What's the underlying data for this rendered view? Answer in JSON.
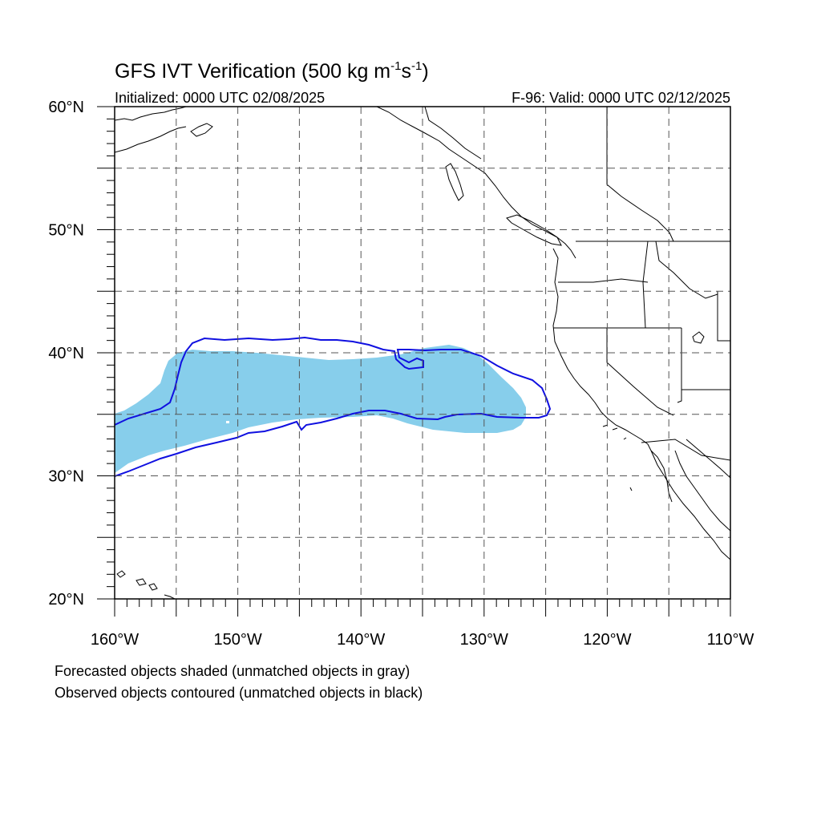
{
  "title": {
    "prefix": "GFS IVT Verification (500 kg m",
    "exp1": "-1",
    "mid": "s",
    "exp2": "-1",
    "suffix": ")"
  },
  "subtitle_left": "Initialized: 0000 UTC 02/08/2025",
  "subtitle_right": "F-96: Valid: 0000 UTC 02/12/2025",
  "map": {
    "lon_range": [
      -160,
      -110
    ],
    "lat_range": [
      20,
      60
    ],
    "grid": "dashed, every 5 degrees",
    "lat_labels": [
      {
        "lat": 60,
        "text": "60°N"
      },
      {
        "lat": 50,
        "text": "50°N"
      },
      {
        "lat": 40,
        "text": "40°N"
      },
      {
        "lat": 30,
        "text": "30°N"
      },
      {
        "lat": 20,
        "text": "20°N"
      }
    ],
    "lon_labels": [
      {
        "lon": -160,
        "text": "160°W"
      },
      {
        "lon": -150,
        "text": "150°W"
      },
      {
        "lon": -140,
        "text": "140°W"
      },
      {
        "lon": -130,
        "text": "130°W"
      },
      {
        "lon": -120,
        "text": "120°W"
      },
      {
        "lon": -110,
        "text": "110°W"
      }
    ],
    "forecast_color": "#87ceeb",
    "observed_color": "#1010e0",
    "coast_color": "#000000"
  },
  "captions": [
    "Forecasted objects shaded (unmatched objects in gray)",
    "Observed objects contoured (unmatched objects in black)"
  ]
}
